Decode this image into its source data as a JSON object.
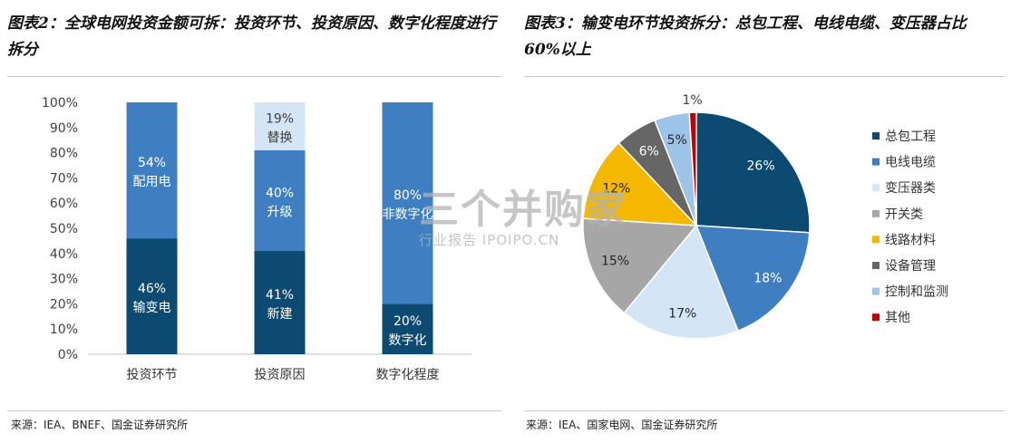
{
  "left_panel": {
    "title": "图表2：全球电网投资金额可拆：投资环节、投资原因、数字化程度进行拆分",
    "source": "来源：IEA、BNEF、国金证券研究所"
  },
  "right_panel": {
    "title": "图表3：输变电环节投资拆分：总包工程、电线电缆、变压器占比 60%以上",
    "source": "来源：IEA、国家电网、国金证券研究所"
  },
  "watermark": {
    "main": "三个并购家",
    "sub": "行业报告 IPOIPO.CN"
  },
  "chart_data": [
    {
      "type": "bar",
      "stacked": true,
      "categories": [
        "投资环节",
        "投资原因",
        "数字化程度"
      ],
      "series": [
        {
          "values": [
            46,
            41,
            20
          ],
          "labels": [
            "输变电",
            "新建",
            "数字化"
          ],
          "color": "#0d4a72"
        },
        {
          "values": [
            54,
            40,
            80
          ],
          "labels": [
            "配用电",
            "升级",
            "非数字化"
          ],
          "color": "#3f7fc1"
        },
        {
          "values": [
            0,
            19,
            0
          ],
          "labels": [
            "",
            "替换",
            ""
          ],
          "color": "#d4e6f5"
        }
      ],
      "ylim": [
        0,
        100
      ],
      "yticks": [
        "0%",
        "10%",
        "20%",
        "30%",
        "40%",
        "50%",
        "60%",
        "70%",
        "80%",
        "90%",
        "100%"
      ],
      "grid": false
    },
    {
      "type": "pie",
      "legend_position": "right",
      "slices": [
        {
          "name": "总包工程",
          "value": 26,
          "label": "26%",
          "color": "#0d4a72"
        },
        {
          "name": "电线电缆",
          "value": 18,
          "label": "18%",
          "color": "#3f7fc1"
        },
        {
          "name": "变压器类",
          "value": 17,
          "label": "17%",
          "color": "#d4e6f5"
        },
        {
          "name": "开关类",
          "value": 15,
          "label": "15%",
          "color": "#a6a6a6"
        },
        {
          "name": "线路材料",
          "value": 12,
          "label": "12%",
          "color": "#f5b800"
        },
        {
          "name": "设备管理",
          "value": 6,
          "label": "6%",
          "color": "#666666"
        },
        {
          "name": "控制和监测",
          "value": 5,
          "label": "5%",
          "color": "#9dc3e6"
        },
        {
          "name": "其他",
          "value": 1,
          "label": "1%",
          "color": "#c00000"
        }
      ]
    }
  ]
}
